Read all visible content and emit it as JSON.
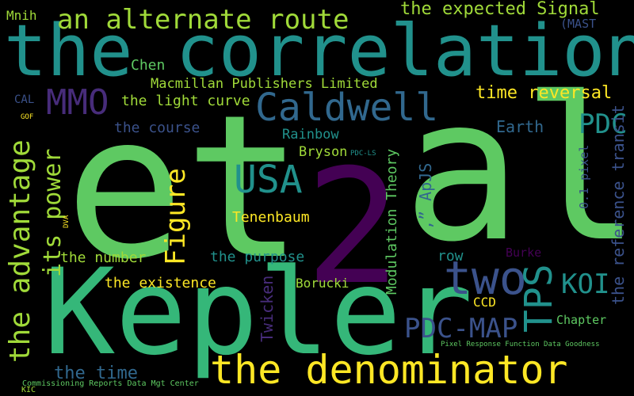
{
  "colors": {
    "background": "#000000",
    "dark_purple": "#440154",
    "indigo": "#3b528b",
    "slate_blue": "#31688e",
    "teal": "#21918c",
    "sea_green": "#35b779",
    "light_green": "#5ec962",
    "lime": "#a0da39",
    "yellow": "#fde725"
  },
  "words": {
    "et": "et",
    "al": "al",
    "two_big": "2",
    "kepler": "Kepler",
    "correlation": "the correlation",
    "denominator": "the denominator",
    "alternate_route": "an alternate route",
    "expected_signal": "the expected Signal",
    "mnih": "Mnih",
    "mast": "(MAST",
    "mmo": "MMO",
    "caldwell": "Caldwell",
    "chen": "Chen",
    "macmillan": "Macmillan Publishers Limited",
    "light_curve": "the light curve",
    "time_reversal": "time reversal",
    "cal": "CAL",
    "gof": "GOF",
    "course": "the course",
    "rainbow": "Rainbow",
    "bryson": "Bryson",
    "pdc_ls": "PDC-LS",
    "earth": "Earth",
    "pdc": "PDC",
    "advantage": "the advantage",
    "its_power": "its power",
    "usa": "USA",
    "figure": "Figure",
    "tenenbaum": "Tenenbaum",
    "modulation": "Modulation Theory",
    "apjs": ",” ApJS",
    "pixel": "0.1 pixel",
    "reference_transit": "the reference transit",
    "dva": "DVA",
    "number": "the number",
    "purpose": "the purpose",
    "row": "row",
    "burke": "Burke",
    "existence": "the existence",
    "borucki": "Borucki",
    "twicken": "Twicken",
    "two_word": "two",
    "tps": "TPS",
    "koi": "KOI",
    "ccd": "CCD",
    "pdc_map": "PDC-MAP",
    "chapter": "Chapter",
    "the_time": "the time",
    "pixel_response": "Pixel Response Function Data Goodness",
    "commissioning": "Commissioning Reports Data Mgt Center",
    "kic": "KIC"
  }
}
